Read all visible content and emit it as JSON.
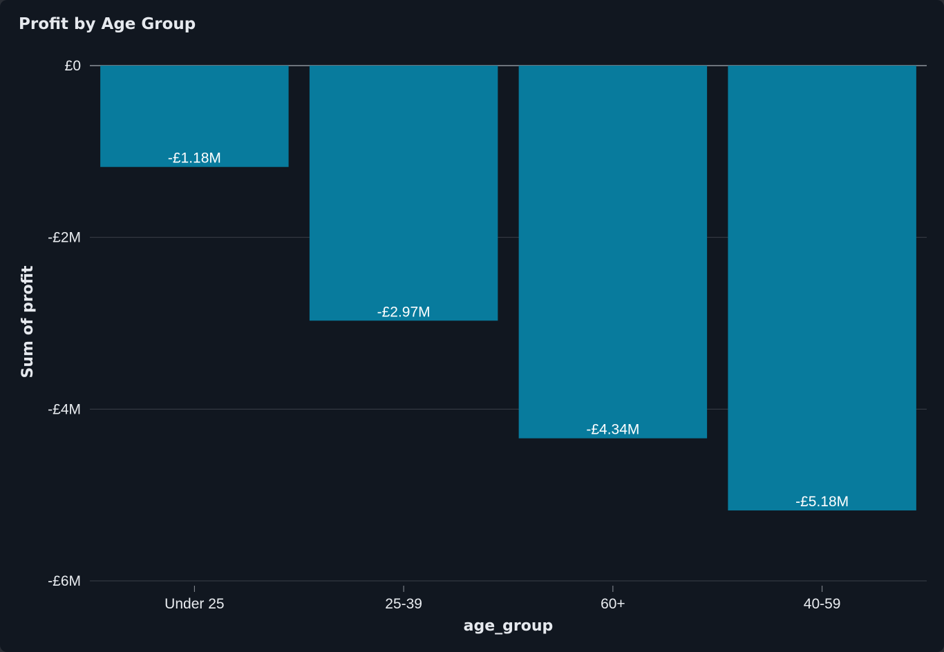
{
  "card": {
    "title": "Profit by Age Group"
  },
  "colors": {
    "background": "#111720",
    "bar": "#087b9d",
    "grid": "#3b4048",
    "zero_line": "#8e939a",
    "text": "#e6e9ee"
  },
  "chart_data": {
    "type": "bar",
    "title": "Profit by Age Group",
    "xlabel": "age_group",
    "ylabel": "Sum of profit",
    "categories": [
      "Under 25",
      "25-39",
      "60+",
      "40-59"
    ],
    "values": [
      -1180000,
      -2970000,
      -4340000,
      -5180000
    ],
    "data_labels": [
      "-£1.18M",
      "-£2.97M",
      "-£4.34M",
      "-£5.18M"
    ],
    "ylim": [
      -6000000,
      0
    ],
    "y_ticks": [
      0,
      -2000000,
      -4000000,
      -6000000
    ],
    "y_tick_labels": [
      "£0",
      "-£2M",
      "-£4M",
      "-£6M"
    ],
    "grid": true,
    "legend": "none"
  }
}
